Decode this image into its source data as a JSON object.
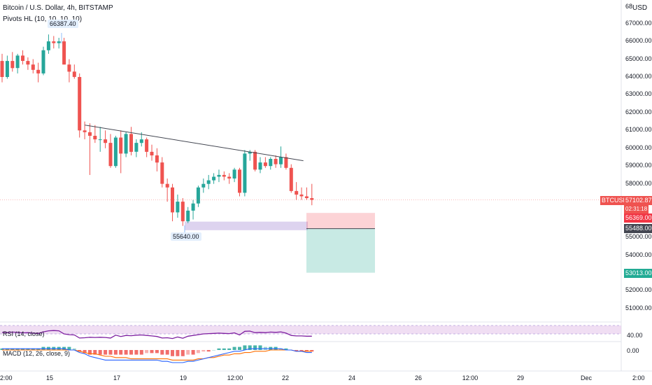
{
  "header": {
    "title": "Bitcoin / U.S. Dollar, 4h, BITSTAMP",
    "indicator": "Pivots HL (10, 10, 10, 10)",
    "currency": "USD"
  },
  "price_axis": {
    "labels": [
      "67000.00",
      "66000.00",
      "65000.00",
      "64000.00",
      "63000.00",
      "62000.00",
      "61000.00",
      "60000.00",
      "59000.00",
      "58000.00",
      "57000.00",
      "56000.00",
      "55000.00",
      "54000.00",
      "53000.00",
      "52000.00",
      "51000.00"
    ],
    "top_label": "68"
  },
  "tags": {
    "symbol": "BTCUSD",
    "last_price": "57102.87",
    "countdown": "02:31:18",
    "stop_price": "56369.00",
    "entry_price": "55488.00",
    "target_price": "53013.00"
  },
  "pivots": {
    "high": "66387.40",
    "low": "55640.00"
  },
  "rsi": {
    "label": "RSI (14, close)",
    "value": "40.00"
  },
  "macd": {
    "label": "MACD (12, 26, close, 9)",
    "value": "0.00"
  },
  "time_axis": [
    "2:00",
    "15",
    "17",
    "19",
    "12:00",
    "22",
    "24",
    "26",
    "12:00",
    "29",
    "Dec",
    "2:00"
  ],
  "colors": {
    "up": "#26a69a",
    "down": "#ef5350",
    "last_price": "#ef5350",
    "stop": "#f23645",
    "entry": "#434651",
    "target": "#22ab94"
  },
  "chart_data": {
    "type": "candlestick",
    "symbol": "BTCUSD",
    "interval": "4h",
    "ylim": [
      50600,
      68200
    ],
    "candles": [
      [
        64900,
        65300,
        63700,
        64000
      ],
      [
        64000,
        65200,
        63900,
        64900
      ],
      [
        64900,
        65400,
        64300,
        64500
      ],
      [
        64500,
        65300,
        64200,
        65200
      ],
      [
        65200,
        65500,
        64700,
        64900
      ],
      [
        64900,
        65100,
        64400,
        64700
      ],
      [
        64700,
        65000,
        64200,
        64400
      ],
      [
        64400,
        64800,
        63700,
        64200
      ],
      [
        64200,
        65700,
        64100,
        65500
      ],
      [
        65500,
        66387.4,
        65300,
        66000
      ],
      [
        66000,
        66300,
        65600,
        65900
      ],
      [
        65900,
        66200,
        65600,
        66000
      ],
      [
        66000,
        66200,
        64700,
        64700
      ],
      [
        64700,
        65000,
        63700,
        64300
      ],
      [
        64300,
        64700,
        63900,
        64000
      ],
      [
        64000,
        64200,
        60600,
        61000
      ],
      [
        61000,
        61500,
        60500,
        60900
      ],
      [
        60900,
        61400,
        58500,
        60700
      ],
      [
        60700,
        61300,
        60300,
        60500
      ],
      [
        60500,
        61200,
        59800,
        60500
      ],
      [
        60500,
        61000,
        60000,
        60300
      ],
      [
        60300,
        60800,
        58900,
        59000
      ],
      [
        59000,
        60700,
        58900,
        60600
      ],
      [
        60600,
        61000,
        58600,
        59700
      ],
      [
        59700,
        60900,
        59500,
        60800
      ],
      [
        60800,
        61200,
        59600,
        59800
      ],
      [
        59800,
        60500,
        59500,
        60300
      ],
      [
        60300,
        60900,
        60100,
        60500
      ],
      [
        60500,
        60600,
        59500,
        59800
      ],
      [
        59800,
        60200,
        59300,
        59600
      ],
      [
        59600,
        60000,
        58700,
        59200
      ],
      [
        59200,
        59500,
        57800,
        58000
      ],
      [
        58000,
        58300,
        57000,
        57800
      ],
      [
        57800,
        58000,
        55900,
        56400
      ],
      [
        56400,
        57400,
        56100,
        57000
      ],
      [
        57000,
        57200,
        55640,
        55900
      ],
      [
        55900,
        56700,
        55800,
        56500
      ],
      [
        56500,
        57100,
        56000,
        56900
      ],
      [
        56900,
        57900,
        56700,
        57800
      ],
      [
        57800,
        58300,
        57500,
        58000
      ],
      [
        58000,
        58500,
        57700,
        58200
      ],
      [
        58200,
        58600,
        58000,
        58400
      ],
      [
        58400,
        58800,
        58100,
        58500
      ],
      [
        58500,
        58700,
        58200,
        58400
      ],
      [
        58400,
        58600,
        58000,
        58300
      ],
      [
        58300,
        58900,
        58100,
        58800
      ],
      [
        58800,
        58900,
        57300,
        57500
      ],
      [
        57500,
        59900,
        57300,
        59700
      ],
      [
        59700,
        59900,
        59300,
        59800
      ],
      [
        59800,
        59900,
        58700,
        58800
      ],
      [
        58800,
        59500,
        58600,
        59200
      ],
      [
        59200,
        59500,
        58900,
        59000
      ],
      [
        59000,
        59500,
        58800,
        59400
      ],
      [
        59400,
        59600,
        58900,
        59100
      ],
      [
        59100,
        60100,
        58900,
        59500
      ],
      [
        59500,
        59700,
        58800,
        58900
      ],
      [
        58900,
        59100,
        57500,
        57600
      ],
      [
        57600,
        58100,
        57100,
        57400
      ],
      [
        57400,
        57800,
        57100,
        57300
      ],
      [
        57300,
        57800,
        57100,
        57200
      ],
      [
        57200,
        58000,
        56800,
        57103
      ]
    ],
    "trendline": {
      "from": [
        16,
        61300
      ],
      "to": [
        57,
        59300
      ]
    },
    "position": {
      "stop": 56369,
      "entry": 55488,
      "target": 53013
    },
    "rsi_range": [
      30,
      70
    ]
  }
}
